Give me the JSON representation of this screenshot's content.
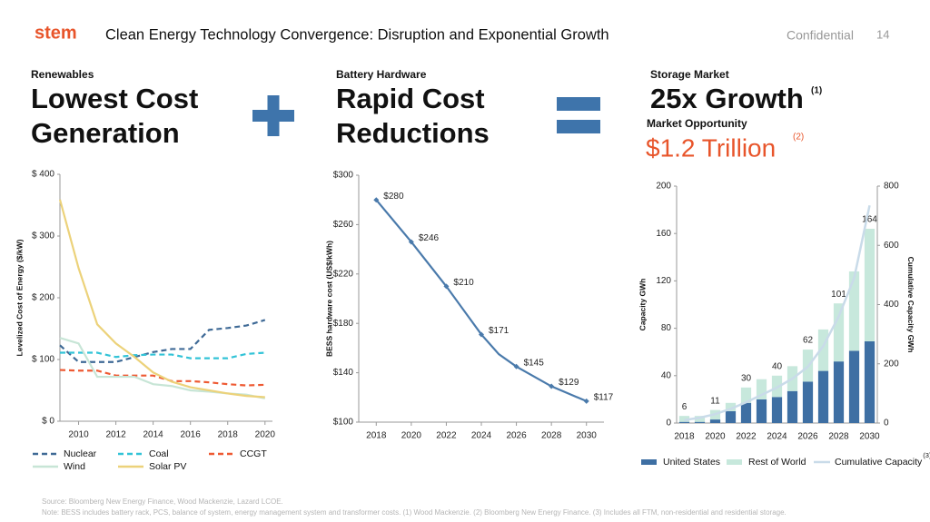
{
  "header": {
    "logo": "stem",
    "title": "Clean Energy Technology Convergence: Disruption and Exponential Growth",
    "confidential": "Confidential",
    "page": "14"
  },
  "panels": [
    {
      "label": "Renewables",
      "headline": [
        "Lowest Cost",
        "Generation"
      ]
    },
    {
      "label": "Battery Hardware",
      "headline": [
        "Rapid Cost",
        "Reductions"
      ]
    },
    {
      "label": "Storage Market",
      "headline": [
        "25x Growth"
      ],
      "note": "(1)",
      "sublabel": "Market Opportunity",
      "subheadline": "$1.2 Trillion",
      "subnote": "(2)"
    }
  ],
  "chart_data": [
    {
      "type": "line",
      "ylabel": "Levelized Cost of Energy ($/kW)",
      "x": [
        2009,
        2010,
        2011,
        2012,
        2013,
        2014,
        2015,
        2016,
        2017,
        2018,
        2019,
        2020
      ],
      "xlim": [
        2009,
        2020.4
      ],
      "xticks": [
        2010,
        2012,
        2014,
        2016,
        2018,
        2020
      ],
      "ylim": [
        0,
        400
      ],
      "yticks": [
        {
          "value": 0,
          "label": "$ 0"
        },
        {
          "value": 100,
          "label": "$ 100"
        },
        {
          "value": 200,
          "label": "$ 200"
        },
        {
          "value": 300,
          "label": "$ 300"
        },
        {
          "value": 400,
          "label": "$ 400"
        }
      ],
      "grid": false,
      "series": [
        {
          "name": "Nuclear",
          "color": "#3f6a96",
          "dash": true,
          "values": [
            123,
            96,
            96,
            96,
            104,
            112,
            117,
            117,
            148,
            151,
            155,
            164
          ]
        },
        {
          "name": "Coal",
          "color": "#32c3d7",
          "dash": true,
          "values": [
            111,
            111,
            111,
            104,
            107,
            108,
            108,
            102,
            102,
            102,
            109,
            111
          ]
        },
        {
          "name": "CCGT",
          "color": "#ee5a33",
          "dash": true,
          "values": [
            83,
            82,
            82,
            74,
            74,
            74,
            65,
            65,
            63,
            60,
            58,
            59
          ]
        },
        {
          "name": "Wind",
          "color": "#c7e5d6",
          "dash": false,
          "values": [
            135,
            126,
            72,
            72,
            72,
            60,
            57,
            50,
            48,
            45,
            43,
            37
          ]
        },
        {
          "name": "Solar PV",
          "color": "#ecd27a",
          "dash": false,
          "values": [
            359,
            248,
            157,
            126,
            104,
            79,
            64,
            55,
            50,
            45,
            41,
            39
          ]
        }
      ]
    },
    {
      "type": "line",
      "ylabel": "BESS hardware cost (US$/kWh)",
      "x": [
        2018,
        2020,
        2022,
        2024,
        2025,
        2026,
        2028,
        2030
      ],
      "xlim": [
        2017,
        2031
      ],
      "xticks": [
        2018,
        2020,
        2022,
        2024,
        2026,
        2028,
        2030
      ],
      "ylim": [
        100,
        300
      ],
      "yticks": [
        {
          "value": 100,
          "label": "$100"
        },
        {
          "value": 140,
          "label": "$140"
        },
        {
          "value": 180,
          "label": "$180"
        },
        {
          "value": 220,
          "label": "$220"
        },
        {
          "value": 260,
          "label": "$260"
        },
        {
          "value": 300,
          "label": "$300"
        }
      ],
      "grid": false,
      "series": [
        {
          "name": null,
          "color": "#4a7aab",
          "dash": false,
          "values": [
            280,
            246,
            210,
            171,
            155,
            145,
            129,
            117
          ],
          "value_labels": [
            "$280",
            "$246",
            "$210",
            "$171",
            null,
            "$145",
            "$129",
            "$117"
          ]
        }
      ]
    },
    {
      "type": "bar",
      "stacked": true,
      "ylabel": "Capacity GWh",
      "y2label": "Cumulative Capacity GWh",
      "categories": [
        2018,
        null,
        2020,
        null,
        2022,
        null,
        2024,
        null,
        2026,
        null,
        2028,
        null,
        2030
      ],
      "ylim": [
        0,
        200
      ],
      "yticks": [
        0,
        40,
        80,
        120,
        160,
        200
      ],
      "y2lim": [
        0,
        800
      ],
      "y2ticks": [
        0,
        200,
        400,
        600,
        800
      ],
      "grid": false,
      "series": [
        {
          "name": "United States",
          "color": "#3e6fa3",
          "values": [
            1,
            1,
            3,
            10,
            17,
            20,
            22,
            27,
            35,
            44,
            52,
            61,
            69
          ]
        },
        {
          "name": "Rest of World",
          "color": "#c7e8dc",
          "values": [
            5,
            5,
            8,
            7,
            13,
            17,
            18,
            21,
            27,
            35,
            49,
            67,
            95
          ]
        },
        {
          "name": "Cumulative Capacity",
          "color": "#c9dbe9",
          "type": "line",
          "axis": "y2",
          "legend_note": "(3)",
          "values": [
            10,
            18,
            30,
            48,
            70,
            95,
            120,
            150,
            190,
            260,
            360,
            490,
            735
          ]
        }
      ],
      "total_labels": [
        "6",
        null,
        "11",
        null,
        "30",
        null,
        "40",
        null,
        "62",
        null,
        "101",
        null,
        "164"
      ]
    }
  ],
  "footnotes": [
    "Source: Bloomberg New Energy Finance, Wood Mackenzie, Lazard LCOE.",
    "Note: BESS includes battery rack, PCS, balance of system, energy management system and transformer costs. (1) Wood Mackenzie. (2) Bloomberg New Energy Finance. (3) Includes all FTM, non-residential and residential storage."
  ]
}
